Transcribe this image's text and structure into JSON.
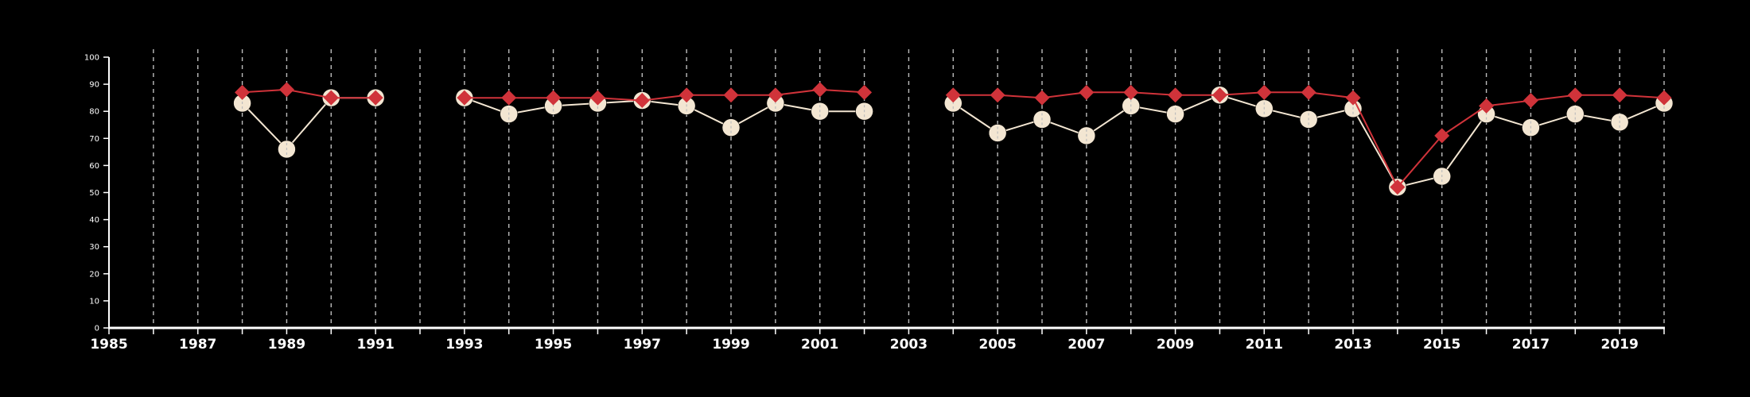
{
  "chart_data": {
    "type": "line",
    "x_range": [
      1985,
      2020
    ],
    "ylim": [
      0,
      100
    ],
    "yticks": [
      0,
      10,
      20,
      30,
      40,
      50,
      60,
      70,
      80,
      90,
      100
    ],
    "xtick_labels": [
      "1985",
      "1987",
      "1989",
      "1991",
      "1993",
      "1995",
      "1997",
      "1999",
      "2001",
      "2003",
      "2005",
      "2007",
      "2009",
      "2011",
      "2013",
      "2015",
      "2017",
      "2019"
    ],
    "grid": "vertical dashed lines at every year",
    "colors": {
      "background": "#000000",
      "axis": "#ffffff",
      "grid": "#bdbdbd"
    },
    "series": [
      {
        "color": "#f3e6d2",
        "marker": "circle",
        "points": [
          [
            1988,
            83
          ],
          [
            1989,
            66
          ],
          [
            1990,
            85
          ],
          [
            1991,
            85
          ],
          [
            1993,
            85
          ],
          [
            1994,
            79
          ],
          [
            1995,
            82
          ],
          [
            1996,
            83
          ],
          [
            1997,
            84
          ],
          [
            1998,
            82
          ],
          [
            1999,
            74
          ],
          [
            2000,
            83
          ],
          [
            2001,
            80
          ],
          [
            2002,
            80
          ],
          [
            2004,
            83
          ],
          [
            2005,
            72
          ],
          [
            2006,
            77
          ],
          [
            2007,
            71
          ],
          [
            2008,
            82
          ],
          [
            2009,
            79
          ],
          [
            2010,
            86
          ],
          [
            2011,
            81
          ],
          [
            2012,
            77
          ],
          [
            2013,
            81
          ],
          [
            2014,
            52
          ],
          [
            2015,
            56
          ],
          [
            2016,
            79
          ],
          [
            2017,
            74
          ],
          [
            2018,
            79
          ],
          [
            2019,
            76
          ],
          [
            2020,
            83
          ]
        ],
        "segments": [
          [
            1988,
            1991
          ],
          [
            1993,
            2002
          ],
          [
            2004,
            2020
          ]
        ]
      },
      {
        "color": "#d0333a",
        "marker": "diamond",
        "points": [
          [
            1988,
            87
          ],
          [
            1989,
            88
          ],
          [
            1990,
            85
          ],
          [
            1991,
            85
          ],
          [
            1993,
            85
          ],
          [
            1994,
            85
          ],
          [
            1995,
            85
          ],
          [
            1996,
            85
          ],
          [
            1997,
            84
          ],
          [
            1998,
            86
          ],
          [
            1999,
            86
          ],
          [
            2000,
            86
          ],
          [
            2001,
            88
          ],
          [
            2002,
            87
          ],
          [
            2004,
            86
          ],
          [
            2005,
            86
          ],
          [
            2006,
            85
          ],
          [
            2007,
            87
          ],
          [
            2008,
            87
          ],
          [
            2009,
            86
          ],
          [
            2010,
            86
          ],
          [
            2011,
            87
          ],
          [
            2012,
            87
          ],
          [
            2013,
            85
          ],
          [
            2014,
            52
          ],
          [
            2015,
            71
          ],
          [
            2016,
            82
          ],
          [
            2017,
            84
          ],
          [
            2018,
            86
          ],
          [
            2019,
            86
          ],
          [
            2020,
            85
          ]
        ],
        "segments": [
          [
            1988,
            1991
          ],
          [
            1993,
            2002
          ],
          [
            2004,
            2020
          ]
        ]
      }
    ]
  }
}
